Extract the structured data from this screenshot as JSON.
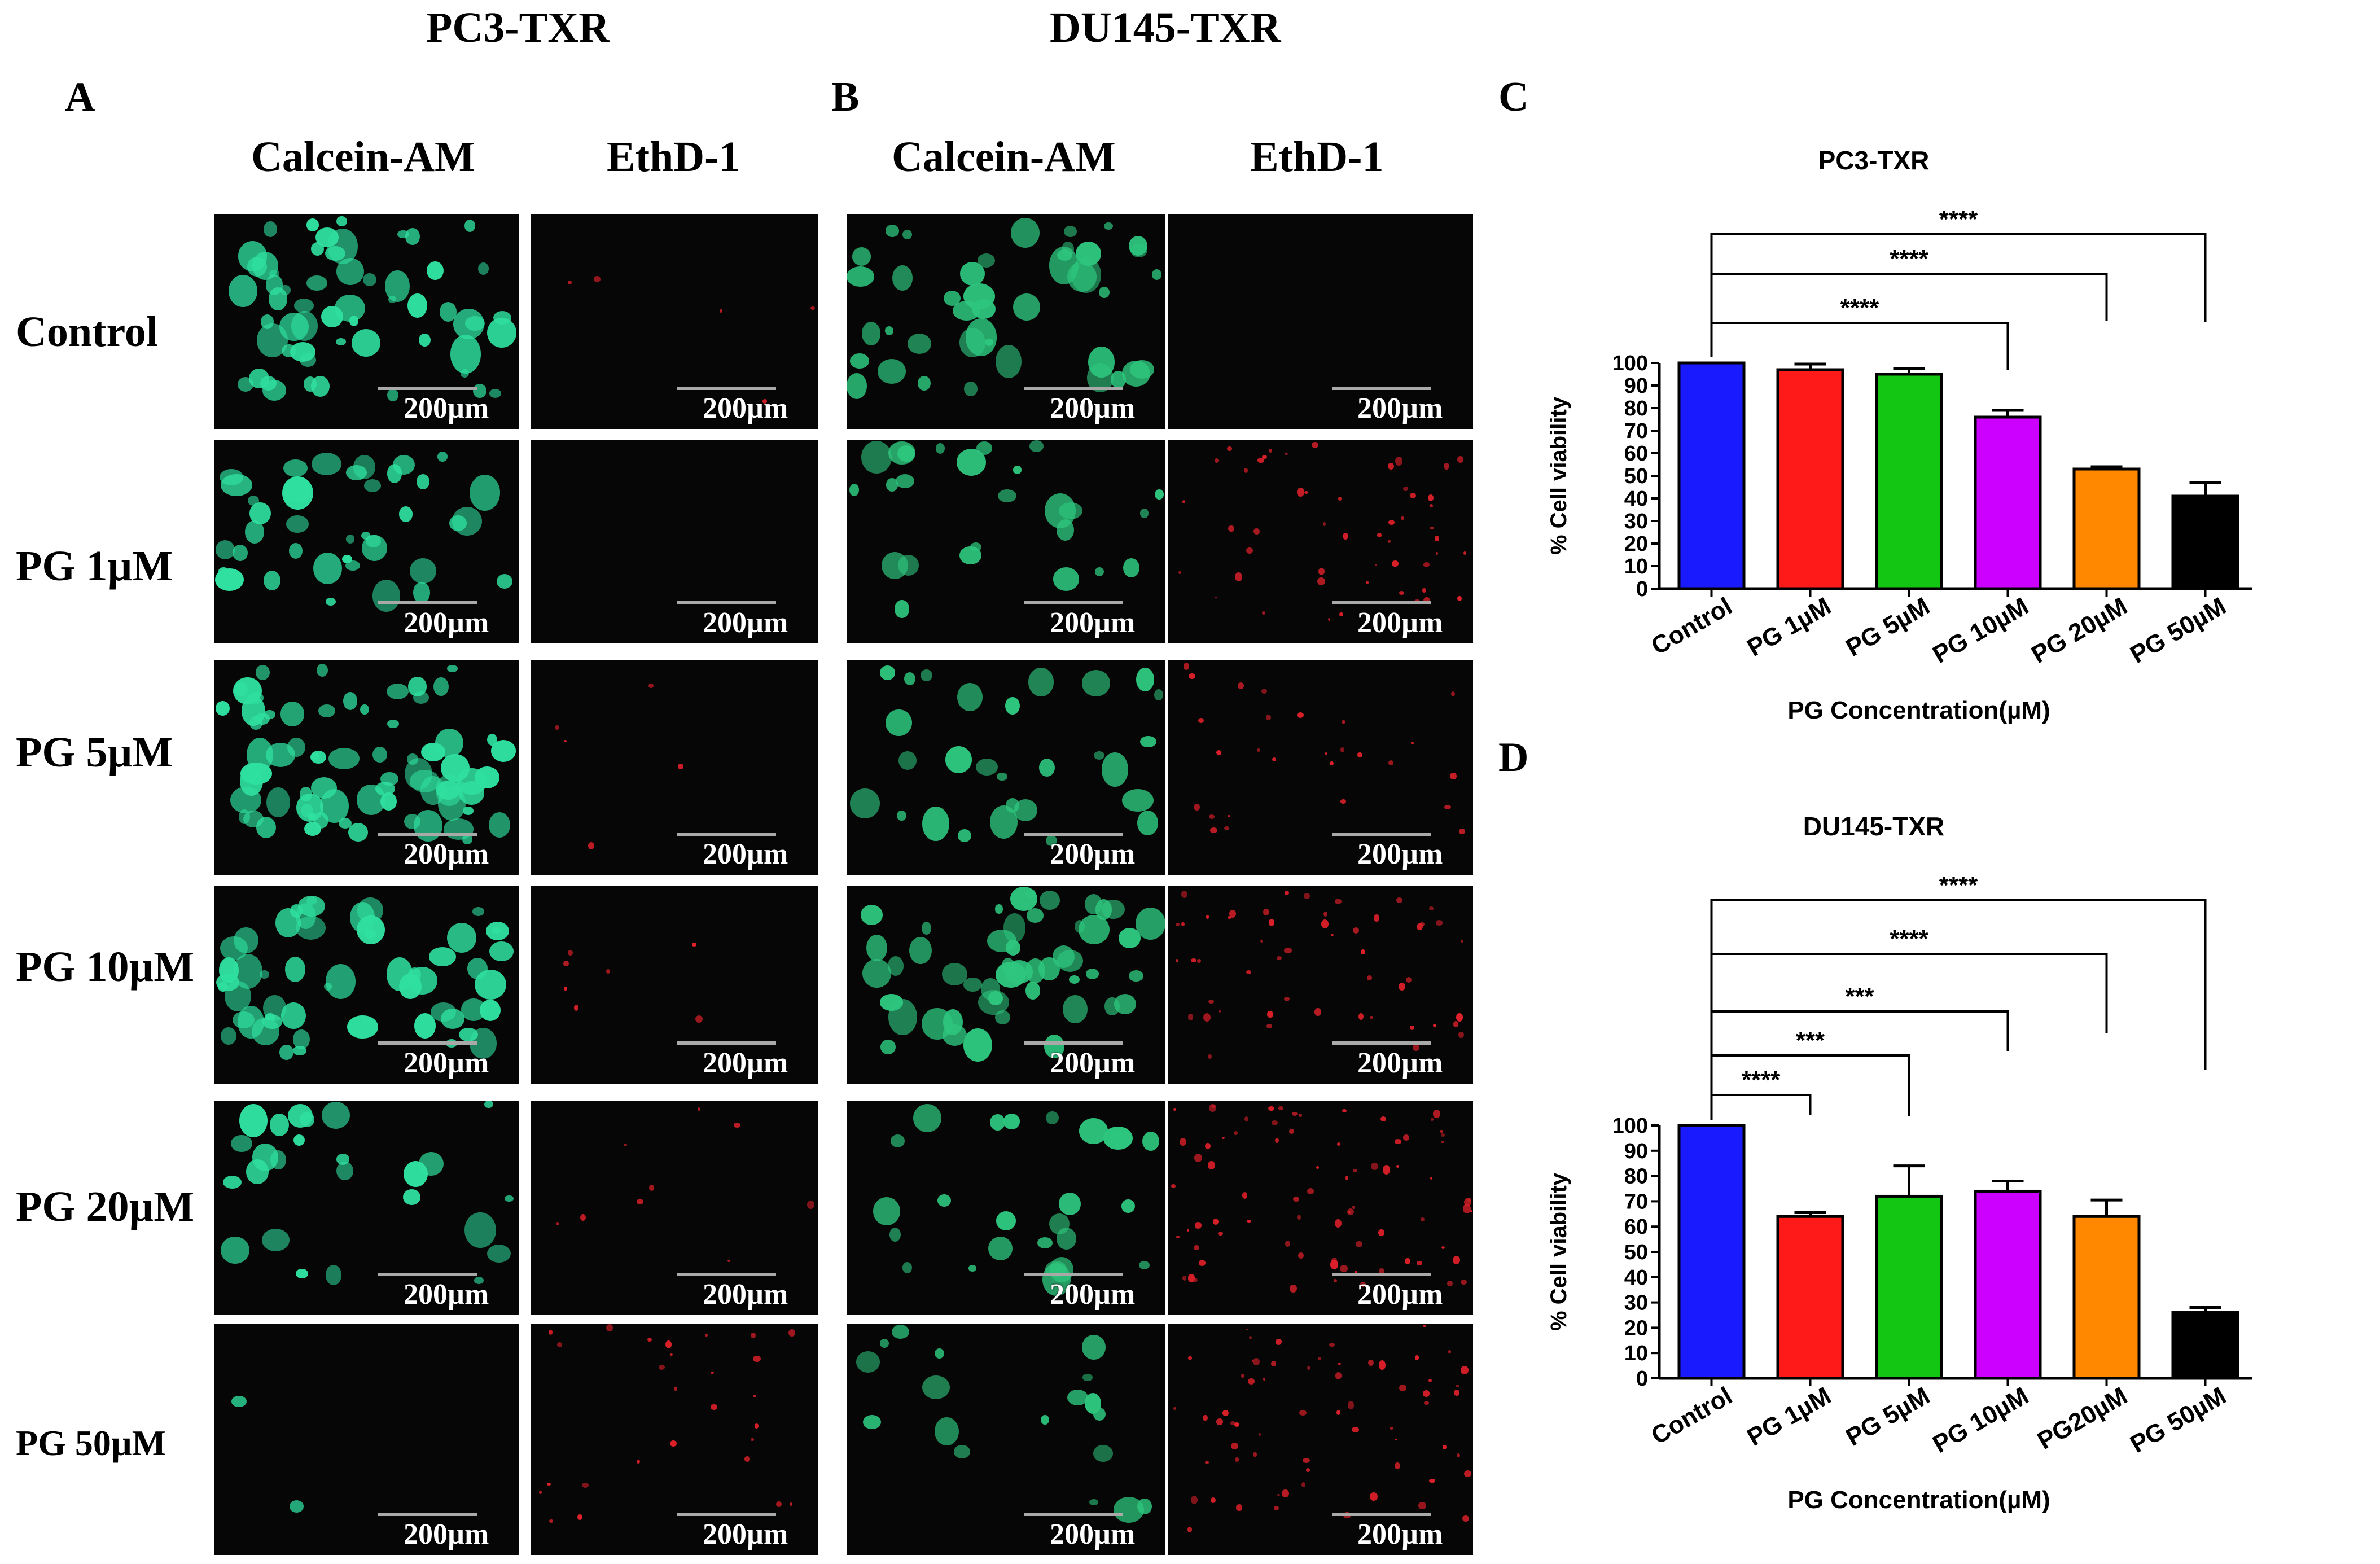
{
  "headers": {
    "pc3": "PC3-TXR",
    "du145": "DU145-TXR"
  },
  "panel_letters": {
    "a": "A",
    "b": "B",
    "c": "C",
    "d": "D"
  },
  "stain_labels": {
    "calcein": "Calcein-AM",
    "ethd": "EthD-1"
  },
  "row_labels": [
    "Control",
    "PG 1µM",
    "PG 5µM",
    "PG 10µM",
    "PG 20µM",
    "PG 50µM"
  ],
  "scale_bar_label": "200µm",
  "colors": {
    "calcein": "#2fe0a0",
    "calcein_du": "#2ec67e",
    "ethd": "#e0202a",
    "bars": [
      "#1a1aff",
      "#ff1a1a",
      "#13c613",
      "#cc00ff",
      "#ff8800",
      "#000000"
    ]
  },
  "micrographs": {
    "pc3_calcein_density": [
      0.8,
      0.55,
      1.0,
      0.75,
      0.35,
      0.03
    ],
    "pc3_ethd_density": [
      0.05,
      0.0,
      0.05,
      0.08,
      0.1,
      0.3
    ],
    "du_calcein_density": [
      0.6,
      0.35,
      0.4,
      0.7,
      0.35,
      0.25
    ],
    "du_ethd_density": [
      0.0,
      0.55,
      0.3,
      0.55,
      0.85,
      0.7
    ]
  },
  "chart_data": [
    {
      "type": "bar",
      "title": "PC3-TXR",
      "xlabel": "PG Concentration(µM)",
      "ylabel": "% Cell viability",
      "categories": [
        "Control",
        "PG 1µM",
        "PG 5µM",
        "PG 10µM",
        "PG 20µM",
        "PG 50µM"
      ],
      "values": [
        100,
        97,
        95,
        76,
        53,
        41
      ],
      "errors": [
        0,
        2.5,
        2.5,
        3,
        1,
        6
      ],
      "ylim": [
        0,
        100
      ],
      "yticks": [
        0,
        10,
        20,
        30,
        40,
        50,
        60,
        70,
        80,
        90,
        100
      ],
      "grid": false,
      "significance": [
        {
          "from": "Control",
          "to": "PG 10µM",
          "label": "****"
        },
        {
          "from": "Control",
          "to": "PG 20µM",
          "label": "****"
        },
        {
          "from": "Control",
          "to": "PG 50µM",
          "label": "****"
        }
      ]
    },
    {
      "type": "bar",
      "title": "DU145-TXR",
      "xlabel": "PG Concentration(µM)",
      "ylabel": "% Cell viability",
      "categories": [
        "Control",
        "PG 1µM",
        "PG 5µM",
        "PG 10µM",
        "PG20µM",
        "PG 50µM"
      ],
      "values": [
        100,
        64,
        72,
        74,
        64,
        26
      ],
      "errors": [
        0,
        1.5,
        12,
        4,
        6.5,
        2
      ],
      "ylim": [
        0,
        100
      ],
      "yticks": [
        0,
        10,
        20,
        30,
        40,
        50,
        60,
        70,
        80,
        90,
        100
      ],
      "grid": false,
      "significance": [
        {
          "from": "Control",
          "to": "PG 1µM",
          "label": "****"
        },
        {
          "from": "Control",
          "to": "PG 5µM",
          "label": "***"
        },
        {
          "from": "Control",
          "to": "PG 10µM",
          "label": "***"
        },
        {
          "from": "Control",
          "to": "PG20µM",
          "label": "****"
        },
        {
          "from": "Control",
          "to": "PG 50µM",
          "label": "****"
        }
      ]
    }
  ]
}
